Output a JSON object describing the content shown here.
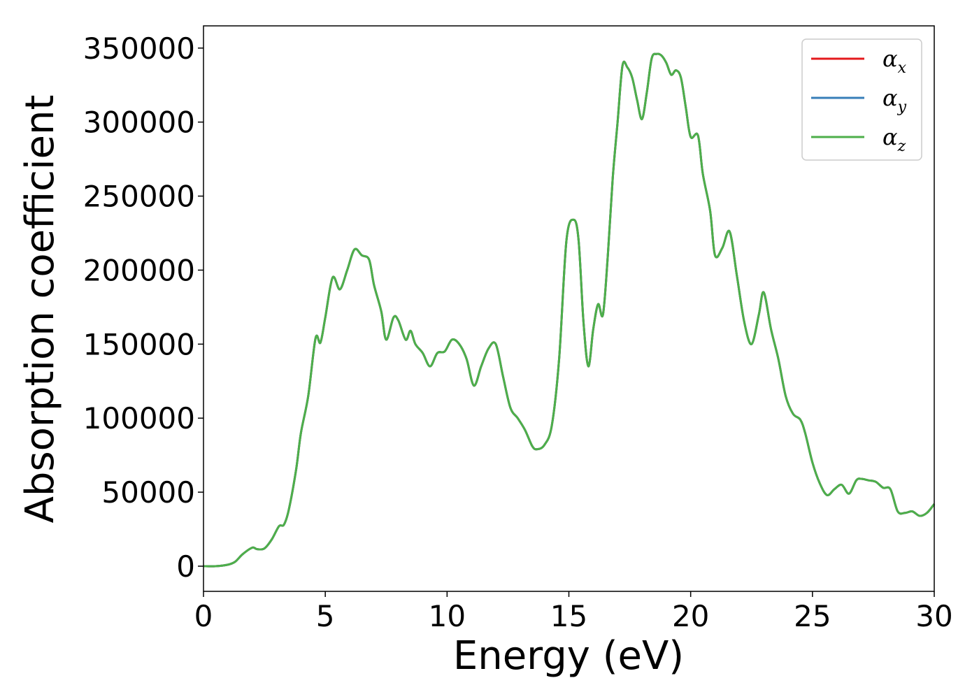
{
  "chart_data": {
    "type": "line",
    "xlabel": "Energy (eV)",
    "ylabel": "Absorption coefficient",
    "xlim": [
      0,
      30
    ],
    "ylim": [
      -17000,
      365000
    ],
    "xticks": [
      0,
      5,
      10,
      15,
      20,
      25,
      30
    ],
    "yticks": [
      0,
      50000,
      100000,
      150000,
      200000,
      250000,
      300000,
      350000
    ],
    "grid": false,
    "legend_position": "top-right",
    "colors": {
      "alpha_x": "#e41a1c",
      "alpha_y": "#377eb8",
      "alpha_z": "#4daf4a"
    },
    "x": [
      0,
      0.5,
      1.0,
      1.3,
      1.6,
      2.0,
      2.2,
      2.5,
      2.8,
      3.1,
      3.3,
      3.5,
      3.8,
      4.0,
      4.3,
      4.6,
      4.8,
      5.0,
      5.3,
      5.6,
      5.9,
      6.2,
      6.5,
      6.8,
      7.0,
      7.3,
      7.5,
      7.8,
      8.0,
      8.3,
      8.5,
      8.7,
      9.0,
      9.3,
      9.6,
      9.9,
      10.2,
      10.5,
      10.8,
      11.1,
      11.4,
      11.7,
      12.0,
      12.3,
      12.6,
      12.9,
      13.2,
      13.5,
      13.7,
      14.0,
      14.3,
      14.6,
      14.9,
      15.2,
      15.4,
      15.6,
      15.8,
      16.0,
      16.2,
      16.4,
      16.6,
      16.8,
      17.0,
      17.2,
      17.4,
      17.6,
      17.8,
      18.0,
      18.2,
      18.4,
      18.6,
      18.8,
      19.0,
      19.2,
      19.4,
      19.6,
      19.8,
      20.0,
      20.3,
      20.5,
      20.8,
      21.0,
      21.3,
      21.6,
      21.9,
      22.2,
      22.5,
      22.8,
      23.0,
      23.3,
      23.6,
      23.9,
      24.2,
      24.5,
      24.7,
      25.0,
      25.3,
      25.6,
      25.9,
      26.2,
      26.5,
      26.8,
      27.0,
      27.3,
      27.6,
      27.9,
      28.2,
      28.5,
      28.8,
      29.1,
      29.4,
      29.7,
      30.0
    ],
    "series": [
      {
        "name": "α",
        "subscript": "x",
        "color": "#e41a1c",
        "values": [
          0,
          0,
          1000,
          3000,
          8000,
          12500,
          11500,
          12000,
          18000,
          27000,
          28000,
          38000,
          65000,
          90000,
          115000,
          154000,
          151000,
          168000,
          195000,
          187000,
          200000,
          214000,
          210000,
          207000,
          190000,
          172000,
          153000,
          168000,
          166000,
          153000,
          159000,
          150000,
          144000,
          135000,
          144000,
          145000,
          153000,
          150000,
          140000,
          122000,
          135000,
          147000,
          150000,
          128000,
          107000,
          100000,
          92000,
          81000,
          79000,
          82000,
          95000,
          140000,
          220000,
          234000,
          220000,
          165000,
          135000,
          160000,
          177000,
          170000,
          210000,
          262000,
          300000,
          338000,
          337000,
          330000,
          315000,
          302000,
          320000,
          343000,
          346000,
          345000,
          340000,
          332000,
          335000,
          330000,
          310000,
          290000,
          291000,
          265000,
          240000,
          210000,
          215000,
          226000,
          196000,
          165000,
          150000,
          170000,
          185000,
          160000,
          140000,
          115000,
          103000,
          99000,
          90000,
          70000,
          56000,
          48000,
          52000,
          55000,
          49000,
          58000,
          59000,
          58000,
          57000,
          53000,
          52000,
          37000,
          36000,
          37000,
          34000,
          36000,
          42000
        ]
      },
      {
        "name": "α",
        "subscript": "y",
        "color": "#377eb8",
        "values": [
          0,
          0,
          1000,
          3000,
          8000,
          12500,
          11500,
          12000,
          18000,
          27000,
          28000,
          38000,
          65000,
          90000,
          115000,
          154000,
          151000,
          168000,
          195000,
          187000,
          200000,
          214000,
          210000,
          207000,
          190000,
          172000,
          153000,
          168000,
          166000,
          153000,
          159000,
          150000,
          144000,
          135000,
          144000,
          145000,
          153000,
          150000,
          140000,
          122000,
          135000,
          147000,
          150000,
          128000,
          107000,
          100000,
          92000,
          81000,
          79000,
          82000,
          95000,
          140000,
          220000,
          234000,
          220000,
          165000,
          135000,
          160000,
          177000,
          170000,
          210000,
          262000,
          300000,
          338000,
          337000,
          330000,
          315000,
          302000,
          320000,
          343000,
          346000,
          345000,
          340000,
          332000,
          335000,
          330000,
          310000,
          290000,
          291000,
          265000,
          240000,
          210000,
          215000,
          226000,
          196000,
          165000,
          150000,
          170000,
          185000,
          160000,
          140000,
          115000,
          103000,
          99000,
          90000,
          70000,
          56000,
          48000,
          52000,
          55000,
          49000,
          58000,
          59000,
          58000,
          57000,
          53000,
          52000,
          37000,
          36000,
          37000,
          34000,
          36000,
          42000
        ]
      },
      {
        "name": "α",
        "subscript": "z",
        "color": "#4daf4a",
        "values": [
          0,
          0,
          1000,
          3000,
          8000,
          12500,
          11500,
          12000,
          18000,
          27000,
          28000,
          38000,
          65000,
          90000,
          115000,
          154000,
          151000,
          168000,
          195000,
          187000,
          200000,
          214000,
          210000,
          207000,
          190000,
          172000,
          153000,
          168000,
          166000,
          153000,
          159000,
          150000,
          144000,
          135000,
          144000,
          145000,
          153000,
          150000,
          140000,
          122000,
          135000,
          147000,
          150000,
          128000,
          107000,
          100000,
          92000,
          81000,
          79000,
          82000,
          95000,
          140000,
          220000,
          234000,
          220000,
          165000,
          135000,
          160000,
          177000,
          170000,
          210000,
          262000,
          300000,
          338000,
          337000,
          330000,
          315000,
          302000,
          320000,
          343000,
          346000,
          345000,
          340000,
          332000,
          335000,
          330000,
          310000,
          290000,
          291000,
          265000,
          240000,
          210000,
          215000,
          226000,
          196000,
          165000,
          150000,
          170000,
          185000,
          160000,
          140000,
          115000,
          103000,
          99000,
          90000,
          70000,
          56000,
          48000,
          52000,
          55000,
          49000,
          58000,
          59000,
          58000,
          57000,
          53000,
          52000,
          37000,
          36000,
          37000,
          34000,
          36000,
          42000
        ]
      }
    ]
  }
}
